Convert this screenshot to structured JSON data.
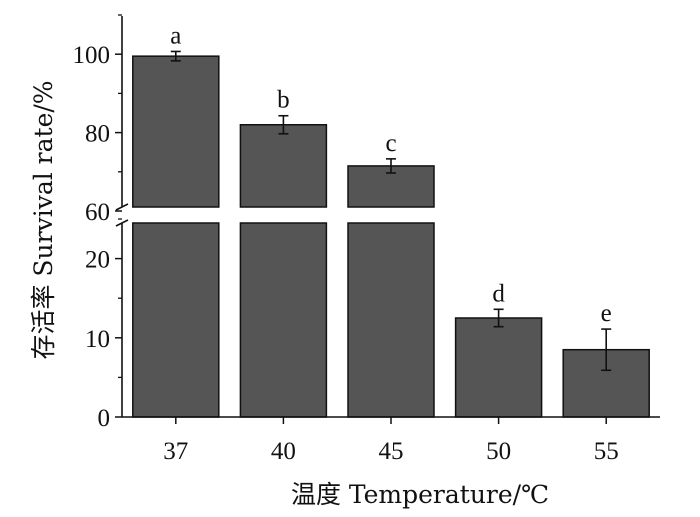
{
  "chart_data": {
    "type": "bar",
    "xlabel": "温度 Temperature/℃",
    "ylabel": "存活率 Survival rate/%",
    "categories": [
      "37",
      "40",
      "45",
      "50",
      "55"
    ],
    "series": [
      {
        "values": [
          99.5,
          82,
          71.5,
          12.5,
          8.5
        ],
        "errors": [
          1.2,
          2.3,
          1.8,
          1.1,
          2.6
        ],
        "labels": [
          "a",
          "b",
          "c",
          "d",
          "e"
        ]
      }
    ],
    "y_axis_break": true,
    "y_lower_range": [
      0,
      25
    ],
    "y_upper_range": [
      60,
      110
    ],
    "y_lower_ticks": [
      "0",
      "10",
      "20"
    ],
    "y_upper_ticks": [
      "60",
      "80",
      "100"
    ],
    "grid": false,
    "bar_color": "#555555",
    "bar_edge_color": "#111111"
  }
}
